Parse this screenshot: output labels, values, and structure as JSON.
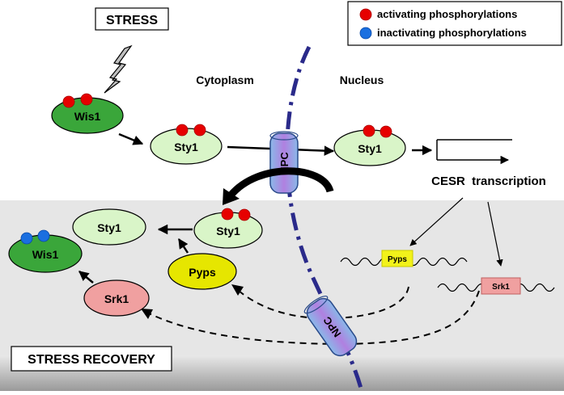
{
  "labels": {
    "stress": "STRESS",
    "stress_recovery": "STRESS RECOVERY",
    "cytoplasm": "Cytoplasm",
    "nucleus": "Nucleus",
    "cesr_transcription": "CESR  transcription",
    "npc": "NPC"
  },
  "legend": {
    "activating": "activating phosphorylations",
    "inactivating": "inactivating phosphorylations",
    "activating_color": "#e60000",
    "inactivating_color": "#1a6fe0"
  },
  "proteins": {
    "wis1": "Wis1",
    "sty1": "Sty1",
    "pyps": "Pyps",
    "srk1": "Srk1"
  },
  "colors": {
    "wis1_fill": "#3aa63a",
    "sty1_fill": "#d9f5c8",
    "pyps_fill": "#e6e600",
    "srk1_fill": "#f0a0a0",
    "nuclear_envelope": "#2a2a8a",
    "recovery_panel": "#e6e6e6"
  }
}
